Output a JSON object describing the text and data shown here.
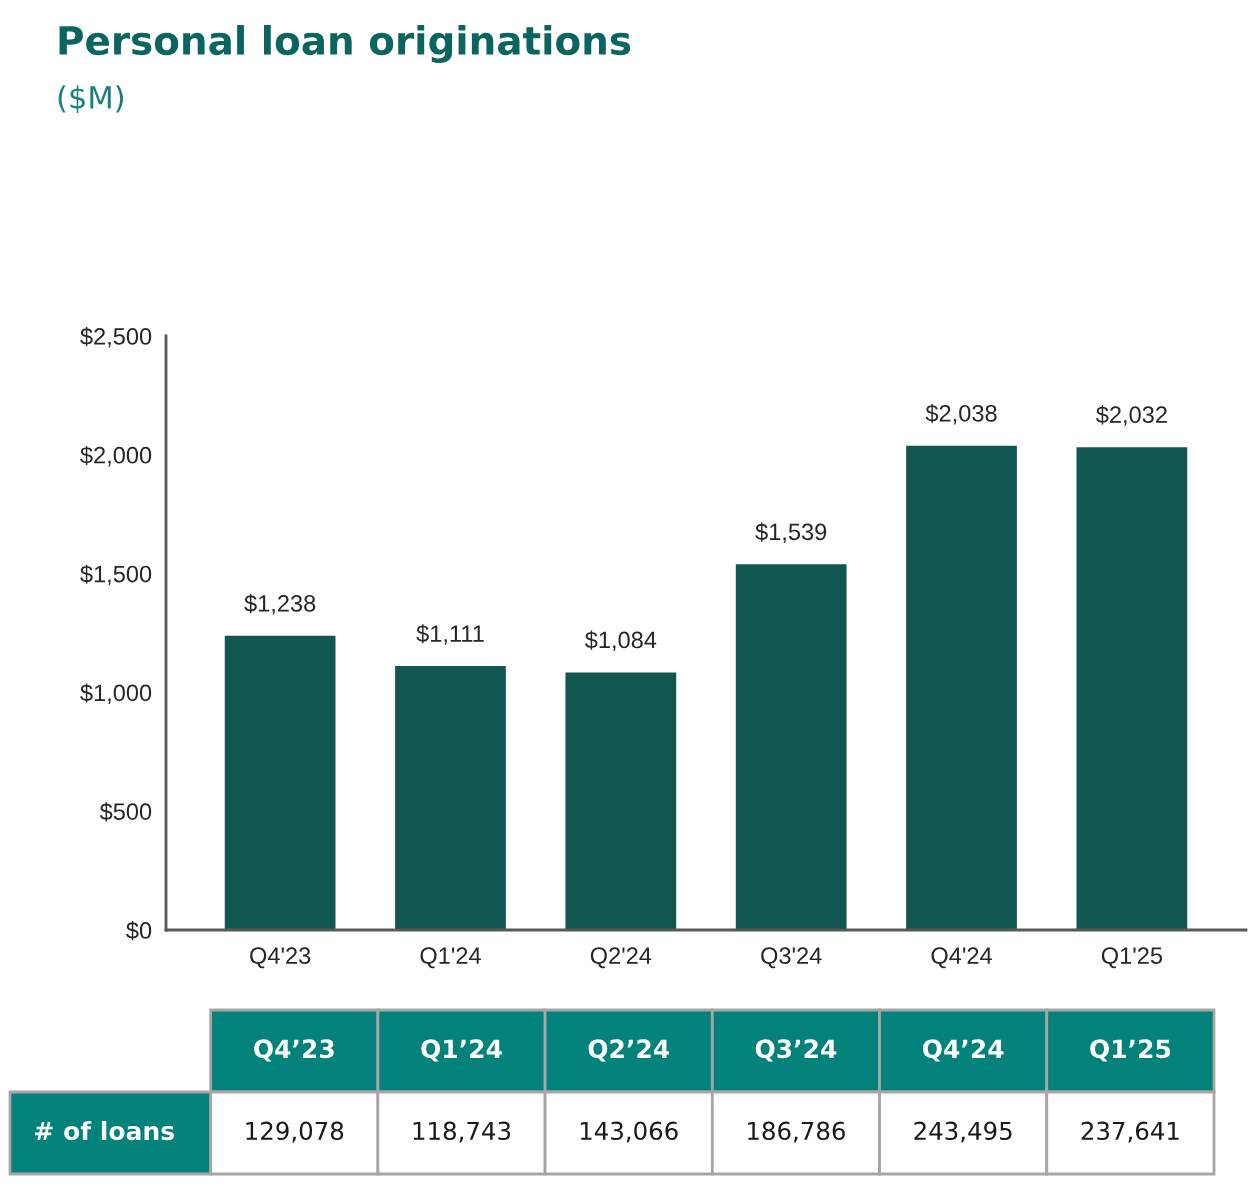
{
  "chart_data": [
    {
      "type": "bar",
      "title": "Personal loan originations",
      "subtitle": "($M)",
      "categories": [
        "Q4'23",
        "Q1'24",
        "Q2'24",
        "Q3'24",
        "Q4'24",
        "Q1'25"
      ],
      "values": [
        1238,
        1111,
        1084,
        1539,
        2038,
        2032
      ],
      "value_labels": [
        "$1,238",
        "$1,111",
        "$1,084",
        "$1,539",
        "$2,038",
        "$2,032"
      ],
      "color": "#115650",
      "ylim": [
        0,
        2500
      ],
      "yticks": [
        {
          "value": 0,
          "label": "$0"
        },
        {
          "value": 500,
          "label": "$500"
        },
        {
          "value": 1000,
          "label": "$1,000"
        },
        {
          "value": 1500,
          "label": "$1,500"
        },
        {
          "value": 2000,
          "label": "$2,000"
        },
        {
          "value": 2500,
          "label": "$2,500"
        }
      ]
    },
    {
      "type": "other",
      "categories": [
        "Q4’23",
        "Q1’24",
        "Q2’24",
        "Q3’24",
        "Q4’24",
        "Q1’25"
      ],
      "series": [
        {
          "name": "# of loans",
          "values": [
            129078,
            118743,
            143066,
            186786,
            243495,
            237641
          ],
          "value_labels": [
            "129,078",
            "118,743",
            "143,066",
            "186,786",
            "243,495",
            "237,641"
          ]
        }
      ]
    }
  ]
}
